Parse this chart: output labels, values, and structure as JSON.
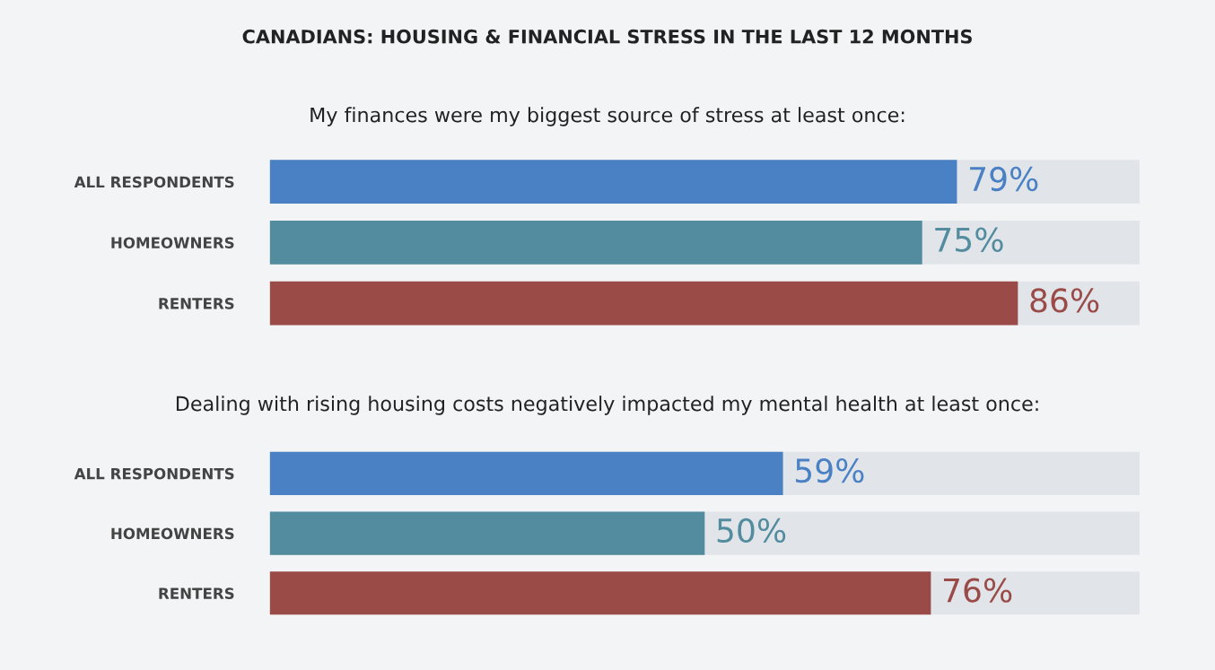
{
  "chart_data": [
    {
      "type": "bar",
      "orientation": "horizontal",
      "title": "CANADIANS: HOUSING & FINANCIAL STRESS IN THE LAST 12 MONTHS",
      "subtitle": "My finances were my biggest source of stress at least once:",
      "categories": [
        "ALL RESPONDENTS",
        "HOMEOWNERS",
        "RENTERS"
      ],
      "values": [
        79,
        75,
        86
      ],
      "colors": [
        "#4a80c4",
        "#528c9e",
        "#9a4b48"
      ],
      "value_labels": [
        "79%",
        "75%",
        "86%"
      ],
      "xlim": [
        0,
        100
      ],
      "tick_labels": "y",
      "grid": false,
      "legend": false
    },
    {
      "type": "bar",
      "orientation": "horizontal",
      "title": "Dealing with rising housing costs negatively impacted my mental health at least once:",
      "categories": [
        "ALL RESPONDENTS",
        "HOMEOWNERS",
        "RENTERS"
      ],
      "values": [
        59,
        50,
        76
      ],
      "colors": [
        "#4a80c4",
        "#528c9e",
        "#9a4b48"
      ],
      "value_labels": [
        "59%",
        "50%",
        "76%"
      ],
      "xlim": [
        0,
        100
      ],
      "tick_labels": "y",
      "grid": false,
      "legend": false
    }
  ]
}
